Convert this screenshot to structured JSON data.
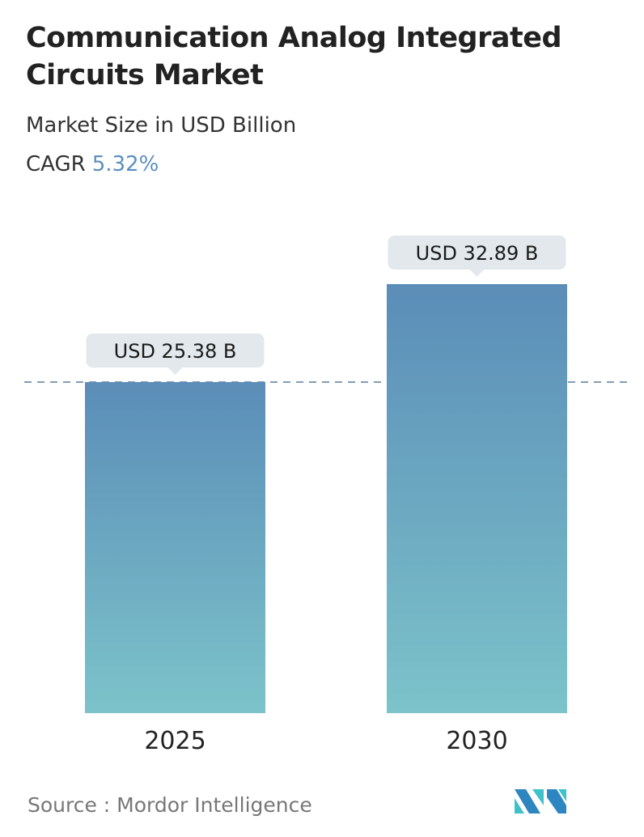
{
  "header": {
    "title": "Communication Analog Integrated Circuits Market",
    "subtitle": "Market Size in USD Billion",
    "cagr_label": "CAGR",
    "cagr_value": "5.32%"
  },
  "chart_data": {
    "type": "bar",
    "categories": [
      "2025",
      "2030"
    ],
    "values": [
      25.38,
      32.89
    ],
    "data_labels": [
      "USD 25.38 B",
      "USD 32.89 B"
    ],
    "ylim": [
      0,
      32.89
    ],
    "grid": false,
    "reference_line": 25.38,
    "colors": {
      "bar_top": "#5b8db8",
      "bar_bottom": "#7cc3ca",
      "label_bg": "#e2e8ec",
      "cagr": "#5b8fbf"
    }
  },
  "footer": {
    "source": "Source :  Mordor Intelligence",
    "logo_text": "MI"
  }
}
